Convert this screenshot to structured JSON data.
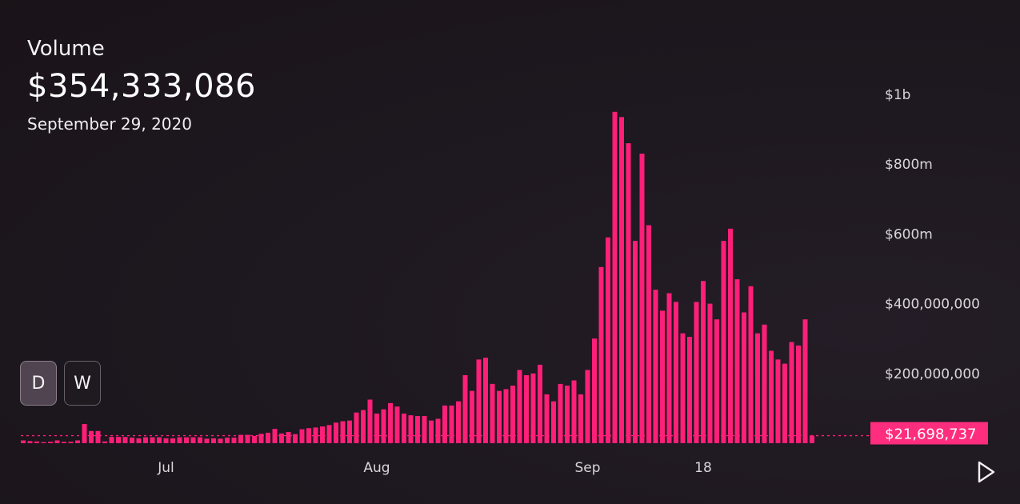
{
  "header": {
    "label": "Volume",
    "value": "$354,333,086",
    "date": "September 29, 2020"
  },
  "controls": {
    "timeframes": [
      {
        "label": "D",
        "active": true
      },
      {
        "label": "W",
        "active": false
      }
    ],
    "play_icon": "play-icon"
  },
  "colors": {
    "bar": "#ff1f78",
    "accent_label_bg": "#ff2d7d",
    "background": "#1d171f",
    "axis_text": "#d9d5d9"
  },
  "chart_data": {
    "type": "bar",
    "title": "Volume",
    "ylim": [
      0,
      1000000000
    ],
    "y_ticks": [
      {
        "value": 200000000,
        "label": "$200,000,000"
      },
      {
        "value": 400000000,
        "label": "$400,000,000"
      },
      {
        "value": 600000000,
        "label": "$600m"
      },
      {
        "value": 800000000,
        "label": "$800m"
      },
      {
        "value": 1000000000,
        "label": "$1b"
      }
    ],
    "x_ticks": [
      {
        "index": 21,
        "label": "Jul"
      },
      {
        "index": 52,
        "label": "Aug"
      },
      {
        "index": 83,
        "label": "Sep"
      },
      {
        "index": 100,
        "label": "18"
      }
    ],
    "current_value": 21698737,
    "current_value_label": "$21,698,737",
    "grid": false,
    "values": [
      8000000,
      6000000,
      5000000,
      3000000,
      4000000,
      8000000,
      4000000,
      4000000,
      8000000,
      55000000,
      35000000,
      35000000,
      5000000,
      18000000,
      18000000,
      18000000,
      16000000,
      14000000,
      17000000,
      17000000,
      17000000,
      14000000,
      14000000,
      17000000,
      17000000,
      17000000,
      17000000,
      13000000,
      14000000,
      13000000,
      16000000,
      16000000,
      24000000,
      24000000,
      21000000,
      27000000,
      30000000,
      41000000,
      28000000,
      32000000,
      26000000,
      40000000,
      43000000,
      45000000,
      48000000,
      52000000,
      59000000,
      63000000,
      65000000,
      88000000,
      95000000,
      125000000,
      85000000,
      97000000,
      115000000,
      105000000,
      85000000,
      80000000,
      78000000,
      78000000,
      65000000,
      70000000,
      108000000,
      108000000,
      120000000,
      195000000,
      150000000,
      240000000,
      245000000,
      170000000,
      150000000,
      155000000,
      165000000,
      210000000,
      195000000,
      200000000,
      225000000,
      140000000,
      120000000,
      170000000,
      165000000,
      180000000,
      140000000,
      210000000,
      300000000,
      505000000,
      590000000,
      950000000,
      935000000,
      860000000,
      580000000,
      830000000,
      625000000,
      440000000,
      380000000,
      430000000,
      405000000,
      315000000,
      305000000,
      405000000,
      465000000,
      400000000,
      355000000,
      580000000,
      615000000,
      470000000,
      375000000,
      450000000,
      315000000,
      340000000,
      265000000,
      240000000,
      228000000,
      290000000,
      280000000,
      355000000,
      21698737
    ]
  }
}
